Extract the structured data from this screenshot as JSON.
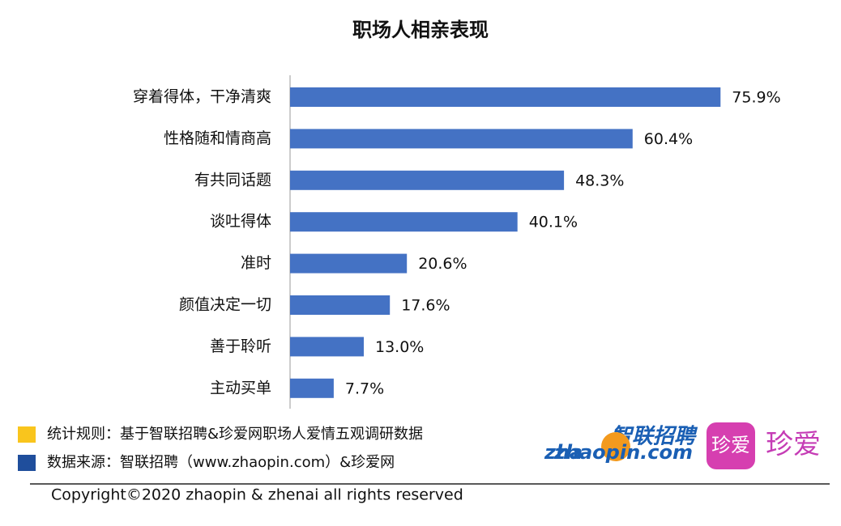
{
  "chart_data": {
    "type": "hbar",
    "title": "职场人相亲表现",
    "categories": [
      "穿着得体，干净清爽",
      "性格随和情商高",
      "有共同话题",
      "谈吐得体",
      "准时",
      "颜值决定一切",
      "善于聆听",
      "主动买单"
    ],
    "values": [
      75.9,
      60.4,
      48.3,
      40.1,
      20.6,
      17.6,
      13.0,
      7.7
    ],
    "value_labels": [
      "75.9%",
      "60.4%",
      "48.3%",
      "40.1%",
      "20.6%",
      "17.6%",
      "13.0%",
      "7.7%"
    ],
    "color": "#4472c4",
    "xlim": [
      0,
      80
    ]
  },
  "notes": [
    {
      "text": "统计规则：基于智联招聘&珍爱网职场人爱情五观调研数据",
      "color": "#f9c51d"
    },
    {
      "text": "数据来源：智联招聘（www.zhaopin.com）&珍爱网",
      "color": "#1f4e9c"
    }
  ],
  "logos": {
    "zhaopin_cn": "智联招聘",
    "zhaopin_en": "zhaopin.com",
    "zhaopin_prefix": "zha",
    "zhenai_icon": "珍爱",
    "zhenai_text": "珍爱"
  },
  "copyright": "Copyright©2020 zhaopin & zhenai  all rights reserved"
}
